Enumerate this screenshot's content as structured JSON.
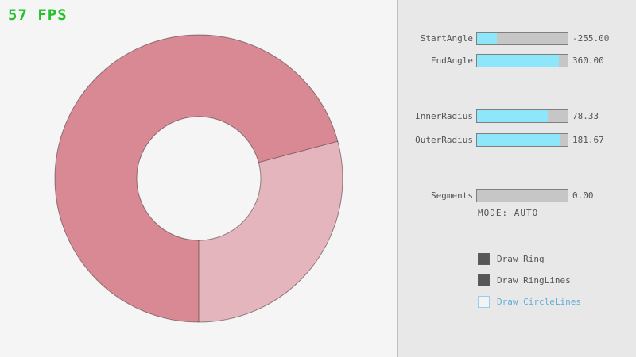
{
  "fps_label": "57 FPS",
  "panel": {
    "sliders": [
      {
        "label": "StartAngle",
        "value": "-255.00",
        "fill_pct": 22
      },
      {
        "label": "EndAngle",
        "value": "360.00",
        "fill_pct": 90
      },
      {
        "label": "InnerRadius",
        "value": "78.33",
        "fill_pct": 78
      },
      {
        "label": "OuterRadius",
        "value": "181.67",
        "fill_pct": 91
      },
      {
        "label": "Segments",
        "value": "0.00",
        "fill_pct": 0
      }
    ],
    "mode_label": "MODE: AUTO",
    "checkboxes": [
      {
        "label": "Draw Ring",
        "checked": true
      },
      {
        "label": "Draw RingLines",
        "checked": true
      },
      {
        "label": "Draw CircleLines",
        "checked": false
      }
    ]
  },
  "ring": {
    "start_angle": "-255.00",
    "end_angle": "360.00",
    "inner_radius": "78.33",
    "outer_radius": "181.67",
    "segments": "0.00",
    "mode": "AUTO",
    "color_overlap": "#d98994",
    "color_single": "#e4b5bc",
    "outline_color": "rgba(0,0,0,0.4)"
  },
  "colors": {
    "fps_green": "#22c32a",
    "background": "#f5f5f5",
    "panel_bg": "#e8e8e8",
    "panel_divider": "#c0c0c0",
    "slider_fill": "#8ee6fa",
    "slider_track": "#c6c6c6",
    "accent_blue": "#62aed8",
    "text_gray": "#545454"
  }
}
